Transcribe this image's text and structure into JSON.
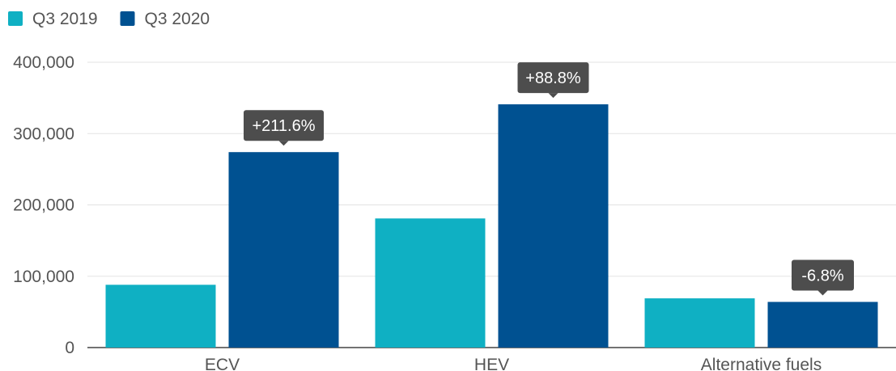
{
  "chart_data": {
    "type": "bar",
    "categories": [
      "ECV",
      "HEV",
      "Alternative fuels"
    ],
    "series": [
      {
        "name": "Q3 2019",
        "values": [
          88000,
          181000,
          69000
        ],
        "color": "#0fb0c3"
      },
      {
        "name": "Q3 2020",
        "values": [
          274000,
          341000,
          64000
        ],
        "color": "#005191"
      }
    ],
    "annotations": [
      "+211.6%",
      "+88.8%",
      "-6.8%"
    ],
    "annotation_color": "#4d4d4d",
    "ylim": [
      0,
      400000
    ],
    "yticks": [
      0,
      100000,
      200000,
      300000,
      400000
    ],
    "ytick_labels": [
      "0",
      "100,000",
      "200,000",
      "300,000",
      "400,000"
    ],
    "grid": true,
    "legend_position": "top-left",
    "title": "",
    "xlabel": "",
    "ylabel": ""
  }
}
